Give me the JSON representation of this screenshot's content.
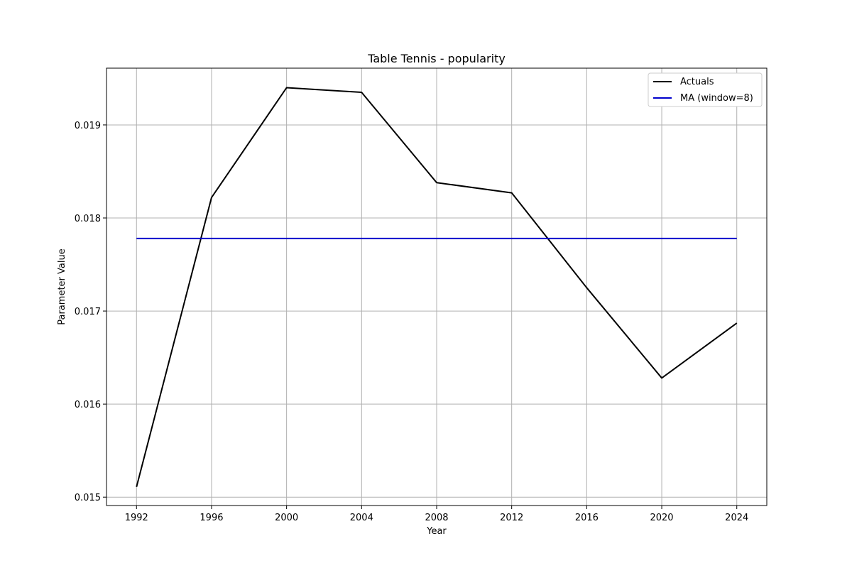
{
  "chart_data": {
    "type": "line",
    "title": "Table Tennis - popularity",
    "xlabel": "Year",
    "ylabel": "Parameter Value",
    "xlim": [
      1990.4,
      2025.6
    ],
    "ylim": [
      0.01491,
      0.01961
    ],
    "xticks": [
      1992,
      1996,
      2000,
      2004,
      2008,
      2012,
      2016,
      2020,
      2024
    ],
    "yticks": [
      0.015,
      0.016,
      0.017,
      0.018,
      0.019
    ],
    "ytick_labels": [
      "0.015",
      "0.016",
      "0.017",
      "0.018",
      "0.019"
    ],
    "grid": true,
    "legend_position": "top-right",
    "series": [
      {
        "name": "Actuals",
        "color": "#000000",
        "x": [
          1992,
          1996,
          2000,
          2004,
          2008,
          2012,
          2016,
          2020,
          2024
        ],
        "values": [
          0.01511,
          0.01822,
          0.0194,
          0.01935,
          0.01838,
          0.01827,
          0.01725,
          0.01628,
          0.01687
        ]
      },
      {
        "name": "MA (window=8)",
        "color": "#0000cc",
        "x": [
          1992,
          1996,
          2000,
          2004,
          2008,
          2012,
          2016,
          2020,
          2024
        ],
        "values": [
          0.01778,
          0.01778,
          0.01778,
          0.01778,
          0.01778,
          0.01778,
          0.01778,
          0.01778,
          0.01778
        ]
      }
    ]
  }
}
